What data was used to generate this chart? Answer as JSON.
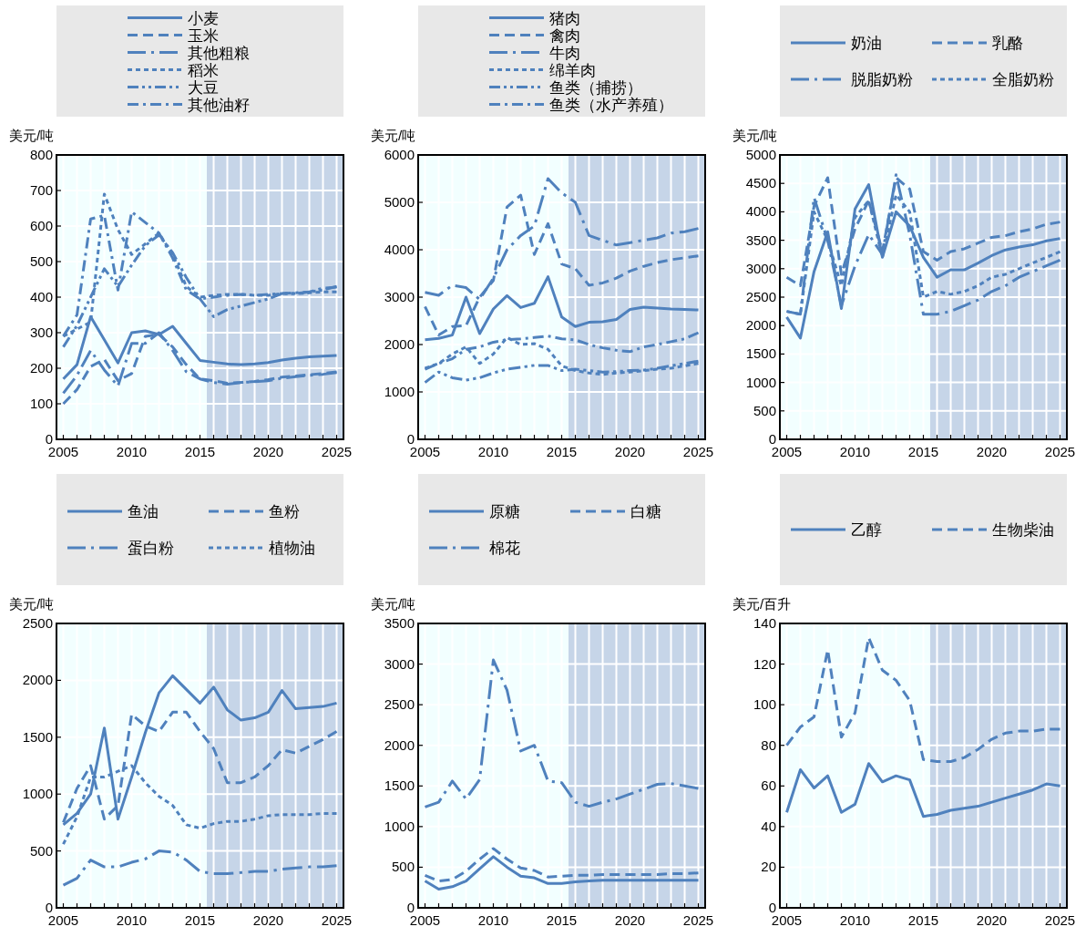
{
  "chart_data": [
    {
      "type": "line",
      "ylabel": "美元/吨",
      "legend": "top",
      "grid": true,
      "xlim": [
        2004.5,
        2025.5
      ],
      "ylim": [
        0,
        800
      ],
      "yticks": [
        0,
        100,
        200,
        300,
        400,
        500,
        600,
        700,
        800
      ],
      "xticks": [
        2005,
        {
          "value": 2006,
          "label": null
        },
        {
          "value": 2007,
          "label": null
        },
        {
          "value": 2008,
          "label": null
        },
        {
          "value": 2009,
          "label": null
        },
        2010,
        {
          "value": 2011,
          "label": null
        },
        {
          "value": 2012,
          "label": null
        },
        {
          "value": 2013,
          "label": null
        },
        {
          "value": 2014,
          "label": null
        },
        2015,
        {
          "value": 2016,
          "label": null
        },
        {
          "value": 2017,
          "label": null
        },
        {
          "value": 2018,
          "label": null
        },
        {
          "value": 2019,
          "label": null
        },
        2020,
        {
          "value": 2021,
          "label": null
        },
        {
          "value": 2022,
          "label": null
        },
        {
          "value": 2023,
          "label": null
        },
        {
          "value": 2024,
          "label": null
        },
        2025
      ],
      "x": [
        2005,
        2006,
        2007,
        2008,
        2009,
        2010,
        2011,
        2012,
        2013,
        2014,
        2015,
        2016,
        2017,
        2018,
        2019,
        2020,
        2021,
        2022,
        2023,
        2024,
        2025
      ],
      "bands": [
        {
          "axis": "x",
          "from": 2015.5,
          "to": 2025.5,
          "color": "#c6d5e8"
        }
      ],
      "series": [
        {
          "name": "小麦",
          "color": "#4f81bd",
          "line_style": "solid",
          "values": [
            170,
            210,
            345,
            280,
            215,
            300,
            305,
            295,
            318,
            270,
            222,
            217,
            212,
            210,
            212,
            216,
            223,
            228,
            232,
            234,
            236
          ]
        },
        {
          "name": "玉米",
          "color": "#4f81bd",
          "line_style": "dashed",
          "values": [
            100,
            140,
            205,
            225,
            165,
            185,
            290,
            295,
            260,
            210,
            170,
            165,
            158,
            160,
            163,
            168,
            175,
            178,
            182,
            185,
            190
          ]
        },
        {
          "name": "其他粗粮",
          "color": "#4f81bd",
          "line_style": "longdashdot",
          "values": [
            130,
            180,
            250,
            195,
            150,
            270,
            270,
            300,
            250,
            190,
            170,
            160,
            155,
            160,
            162,
            165,
            172,
            176,
            180,
            183,
            188
          ]
        },
        {
          "name": "稻米",
          "color": "#4f81bd",
          "line_style": "dotted",
          "values": [
            290,
            310,
            330,
            690,
            590,
            520,
            550,
            580,
            520,
            430,
            400,
            405,
            408,
            408,
            405,
            405,
            410,
            410,
            412,
            415,
            415
          ]
        },
        {
          "name": "大豆",
          "color": "#4f81bd",
          "line_style": "dashdotdot",
          "values": [
            260,
            320,
            400,
            480,
            430,
            490,
            545,
            575,
            525,
            455,
            395,
            345,
            365,
            375,
            385,
            395,
            410,
            410,
            415,
            420,
            430
          ]
        },
        {
          "name": "其他油籽",
          "color": "#4f81bd",
          "line_style": "dashdot",
          "values": [
            290,
            350,
            620,
            630,
            420,
            640,
            610,
            580,
            510,
            420,
            395,
            400,
            405,
            408,
            405,
            408,
            410,
            412,
            415,
            425,
            428
          ]
        }
      ]
    },
    {
      "type": "line",
      "ylabel": "美元/吨",
      "legend": "top",
      "grid": true,
      "xlim": [
        2004.5,
        2025.5
      ],
      "ylim": [
        0,
        6000
      ],
      "yticks": [
        0,
        1000,
        2000,
        3000,
        4000,
        5000,
        6000
      ],
      "xticks": [
        2005,
        {
          "value": 2006,
          "label": null
        },
        {
          "value": 2007,
          "label": null
        },
        {
          "value": 2008,
          "label": null
        },
        {
          "value": 2009,
          "label": null
        },
        2010,
        {
          "value": 2011,
          "label": null
        },
        {
          "value": 2012,
          "label": null
        },
        {
          "value": 2013,
          "label": null
        },
        {
          "value": 2014,
          "label": null
        },
        2015,
        {
          "value": 2016,
          "label": null
        },
        {
          "value": 2017,
          "label": null
        },
        {
          "value": 2018,
          "label": null
        },
        {
          "value": 2019,
          "label": null
        },
        2020,
        {
          "value": 2021,
          "label": null
        },
        {
          "value": 2022,
          "label": null
        },
        {
          "value": 2023,
          "label": null
        },
        {
          "value": 2024,
          "label": null
        },
        2025
      ],
      "x": [
        2005,
        2006,
        2007,
        2008,
        2009,
        2010,
        2011,
        2012,
        2013,
        2014,
        2015,
        2016,
        2017,
        2018,
        2019,
        2020,
        2021,
        2022,
        2023,
        2024,
        2025
      ],
      "bands": [
        {
          "axis": "x",
          "from": 2015.5,
          "to": 2025.5,
          "color": "#c6d5e8"
        }
      ],
      "series": [
        {
          "name": "猪肉",
          "color": "#4f81bd",
          "line_style": "solid",
          "values": [
            2100,
            2130,
            2200,
            3000,
            2230,
            2750,
            3030,
            2780,
            2870,
            3430,
            2580,
            2380,
            2470,
            2480,
            2530,
            2740,
            2790,
            2770,
            2750,
            2740,
            2730
          ]
        },
        {
          "name": "禽肉",
          "color": "#4f81bd",
          "line_style": "dashed",
          "values": [
            2800,
            2200,
            2380,
            2400,
            3000,
            3350,
            4900,
            5150,
            3900,
            4550,
            3700,
            3600,
            3250,
            3300,
            3400,
            3550,
            3650,
            3730,
            3790,
            3830,
            3870
          ]
        },
        {
          "name": "牛肉",
          "color": "#4f81bd",
          "line_style": "longdashdot",
          "values": [
            3100,
            3040,
            3250,
            3200,
            2950,
            3400,
            4000,
            4300,
            4500,
            5500,
            5200,
            5000,
            4300,
            4200,
            4100,
            4150,
            4200,
            4250,
            4350,
            4380,
            4450
          ]
        },
        {
          "name": "绵羊肉",
          "color": "#4f81bd",
          "line_style": "dotted",
          "values": [
            1500,
            1600,
            1800,
            1950,
            1600,
            1800,
            2150,
            2000,
            2020,
            1900,
            1550,
            1450,
            1400,
            1370,
            1400,
            1420,
            1450,
            1480,
            1500,
            1550,
            1600
          ]
        },
        {
          "name": "鱼类（捕捞）",
          "color": "#4f81bd",
          "line_style": "dashdotdot",
          "values": [
            1200,
            1420,
            1300,
            1250,
            1300,
            1400,
            1480,
            1520,
            1560,
            1560,
            1450,
            1480,
            1450,
            1420,
            1430,
            1450,
            1460,
            1500,
            1550,
            1600,
            1650
          ]
        },
        {
          "name": "鱼类（水产养殖）",
          "color": "#4f81bd",
          "line_style": "dashdot",
          "values": [
            1480,
            1600,
            1700,
            1900,
            1950,
            2050,
            2100,
            2120,
            2150,
            2180,
            2120,
            2100,
            2000,
            1930,
            1880,
            1850,
            1950,
            2000,
            2060,
            2120,
            2250
          ]
        }
      ]
    },
    {
      "type": "line",
      "ylabel": "美元/吨",
      "legend": "top",
      "grid": true,
      "xlim": [
        2004.5,
        2025.5
      ],
      "ylim": [
        0,
        5000
      ],
      "yticks": [
        0,
        500,
        1000,
        1500,
        2000,
        2500,
        3000,
        3500,
        4000,
        4500,
        5000
      ],
      "xticks": [
        2005,
        {
          "value": 2006,
          "label": null
        },
        {
          "value": 2007,
          "label": null
        },
        {
          "value": 2008,
          "label": null
        },
        {
          "value": 2009,
          "label": null
        },
        2010,
        {
          "value": 2011,
          "label": null
        },
        {
          "value": 2012,
          "label": null
        },
        {
          "value": 2013,
          "label": null
        },
        {
          "value": 2014,
          "label": null
        },
        2015,
        {
          "value": 2016,
          "label": null
        },
        {
          "value": 2017,
          "label": null
        },
        {
          "value": 2018,
          "label": null
        },
        {
          "value": 2019,
          "label": null
        },
        2020,
        {
          "value": 2021,
          "label": null
        },
        {
          "value": 2022,
          "label": null
        },
        {
          "value": 2023,
          "label": null
        },
        {
          "value": 2024,
          "label": null
        },
        2025
      ],
      "x": [
        2005,
        2006,
        2007,
        2008,
        2009,
        2010,
        2011,
        2012,
        2013,
        2014,
        2015,
        2016,
        2017,
        2018,
        2019,
        2020,
        2021,
        2022,
        2023,
        2024,
        2025
      ],
      "bands": [
        {
          "axis": "x",
          "from": 2015.5,
          "to": 2025.5,
          "color": "#c6d5e8"
        }
      ],
      "series": [
        {
          "name": "奶油",
          "color": "#4f81bd",
          "line_style": "solid",
          "values": [
            2150,
            1780,
            2950,
            3650,
            2300,
            4050,
            4480,
            3200,
            4000,
            3750,
            3200,
            2850,
            2980,
            2980,
            3100,
            3230,
            3330,
            3380,
            3420,
            3490,
            3530
          ]
        },
        {
          "name": "乳酪",
          "color": "#4f81bd",
          "line_style": "dashed",
          "values": [
            2850,
            2700,
            4100,
            4600,
            2900,
            3700,
            4200,
            3300,
            4600,
            4400,
            3300,
            3150,
            3300,
            3350,
            3450,
            3550,
            3580,
            3650,
            3700,
            3780,
            3820
          ]
        },
        {
          "name": "脱脂奶粉",
          "color": "#4f81bd",
          "line_style": "longdashdot",
          "values": [
            2250,
            2200,
            4250,
            3500,
            2350,
            3050,
            3600,
            3250,
            4650,
            3600,
            2200,
            2200,
            2250,
            2350,
            2450,
            2600,
            2700,
            2850,
            2950,
            3050,
            3150
          ]
        },
        {
          "name": "全脂奶粉",
          "color": "#4f81bd",
          "line_style": "dotted",
          "values": [
            2250,
            2200,
            4000,
            3500,
            2700,
            3900,
            4200,
            3200,
            4300,
            4000,
            2500,
            2600,
            2550,
            2600,
            2700,
            2850,
            2900,
            3000,
            3100,
            3200,
            3300
          ]
        }
      ]
    },
    {
      "type": "line",
      "ylabel": "美元/吨",
      "legend": "top",
      "grid": true,
      "xlim": [
        2004.5,
        2025.5
      ],
      "ylim": [
        0,
        2500
      ],
      "yticks": [
        0,
        500,
        1000,
        1500,
        2000,
        2500
      ],
      "xticks": [
        2005,
        {
          "value": 2006,
          "label": null
        },
        {
          "value": 2007,
          "label": null
        },
        {
          "value": 2008,
          "label": null
        },
        {
          "value": 2009,
          "label": null
        },
        2010,
        {
          "value": 2011,
          "label": null
        },
        {
          "value": 2012,
          "label": null
        },
        {
          "value": 2013,
          "label": null
        },
        {
          "value": 2014,
          "label": null
        },
        2015,
        {
          "value": 2016,
          "label": null
        },
        {
          "value": 2017,
          "label": null
        },
        {
          "value": 2018,
          "label": null
        },
        {
          "value": 2019,
          "label": null
        },
        2020,
        {
          "value": 2021,
          "label": null
        },
        {
          "value": 2022,
          "label": null
        },
        {
          "value": 2023,
          "label": null
        },
        {
          "value": 2024,
          "label": null
        },
        2025
      ],
      "x": [
        2005,
        2006,
        2007,
        2008,
        2009,
        2010,
        2011,
        2012,
        2013,
        2014,
        2015,
        2016,
        2017,
        2018,
        2019,
        2020,
        2021,
        2022,
        2023,
        2024,
        2025
      ],
      "bands": [
        {
          "axis": "x",
          "from": 2015.5,
          "to": 2025.5,
          "color": "#c6d5e8"
        }
      ],
      "series": [
        {
          "name": "鱼油",
          "color": "#4f81bd",
          "line_style": "solid",
          "values": [
            730,
            830,
            1000,
            1580,
            780,
            1150,
            1540,
            1890,
            2040,
            1920,
            1800,
            1940,
            1740,
            1650,
            1670,
            1720,
            1910,
            1750,
            1760,
            1770,
            1800
          ]
        },
        {
          "name": "鱼粉",
          "color": "#4f81bd",
          "line_style": "dashed",
          "values": [
            750,
            1050,
            1250,
            780,
            900,
            1700,
            1600,
            1550,
            1720,
            1720,
            1550,
            1400,
            1100,
            1100,
            1150,
            1250,
            1390,
            1360,
            1420,
            1480,
            1550
          ]
        },
        {
          "name": "蛋白粉",
          "color": "#4f81bd",
          "line_style": "longdashdot",
          "values": [
            200,
            260,
            420,
            360,
            360,
            400,
            430,
            500,
            490,
            420,
            320,
            300,
            300,
            310,
            320,
            320,
            340,
            350,
            360,
            360,
            370
          ]
        },
        {
          "name": "植物油",
          "color": "#4f81bd",
          "line_style": "dotted",
          "values": [
            560,
            800,
            1150,
            1150,
            1200,
            1250,
            1100,
            980,
            900,
            730,
            700,
            740,
            760,
            760,
            780,
            810,
            820,
            820,
            820,
            830,
            830
          ]
        }
      ]
    },
    {
      "type": "line",
      "ylabel": "美元/吨",
      "legend": "top",
      "grid": true,
      "xlim": [
        2004.5,
        2025.5
      ],
      "ylim": [
        0,
        3500
      ],
      "yticks": [
        0,
        500,
        1000,
        1500,
        2000,
        2500,
        3000,
        3500
      ],
      "xticks": [
        2005,
        {
          "value": 2006,
          "label": null
        },
        {
          "value": 2007,
          "label": null
        },
        {
          "value": 2008,
          "label": null
        },
        {
          "value": 2009,
          "label": null
        },
        2010,
        {
          "value": 2011,
          "label": null
        },
        {
          "value": 2012,
          "label": null
        },
        {
          "value": 2013,
          "label": null
        },
        {
          "value": 2014,
          "label": null
        },
        2015,
        {
          "value": 2016,
          "label": null
        },
        {
          "value": 2017,
          "label": null
        },
        {
          "value": 2018,
          "label": null
        },
        {
          "value": 2019,
          "label": null
        },
        2020,
        {
          "value": 2021,
          "label": null
        },
        {
          "value": 2022,
          "label": null
        },
        {
          "value": 2023,
          "label": null
        },
        {
          "value": 2024,
          "label": null
        },
        2025
      ],
      "x": [
        2005,
        2006,
        2007,
        2008,
        2009,
        2010,
        2011,
        2012,
        2013,
        2014,
        2015,
        2016,
        2017,
        2018,
        2019,
        2020,
        2021,
        2022,
        2023,
        2024,
        2025
      ],
      "bands": [
        {
          "axis": "x",
          "from": 2015.5,
          "to": 2025.5,
          "color": "#c6d5e8"
        }
      ],
      "series": [
        {
          "name": "原糖",
          "color": "#4f81bd",
          "line_style": "solid",
          "values": [
            330,
            230,
            260,
            330,
            480,
            630,
            500,
            390,
            370,
            300,
            300,
            320,
            330,
            340,
            340,
            340,
            340,
            340,
            340,
            340,
            340
          ]
        },
        {
          "name": "白糖",
          "color": "#4f81bd",
          "line_style": "dashed",
          "values": [
            400,
            330,
            350,
            450,
            600,
            730,
            600,
            490,
            460,
            380,
            390,
            400,
            400,
            410,
            410,
            410,
            410,
            410,
            420,
            420,
            430
          ]
        },
        {
          "name": "棉花",
          "color": "#4f81bd",
          "line_style": "longdashdot",
          "values": [
            1240,
            1300,
            1560,
            1340,
            1580,
            3050,
            2680,
            1930,
            2000,
            1560,
            1540,
            1300,
            1250,
            1300,
            1340,
            1400,
            1460,
            1520,
            1530,
            1500,
            1470
          ]
        }
      ]
    },
    {
      "type": "line",
      "ylabel": "美元/百升",
      "legend": "top",
      "grid": true,
      "xlim": [
        2004.5,
        2025.5
      ],
      "ylim": [
        0,
        140
      ],
      "yticks": [
        0,
        20,
        40,
        60,
        80,
        100,
        120,
        140
      ],
      "xticks": [
        2005,
        {
          "value": 2006,
          "label": null
        },
        {
          "value": 2007,
          "label": null
        },
        {
          "value": 2008,
          "label": null
        },
        {
          "value": 2009,
          "label": null
        },
        2010,
        {
          "value": 2011,
          "label": null
        },
        {
          "value": 2012,
          "label": null
        },
        {
          "value": 2013,
          "label": null
        },
        {
          "value": 2014,
          "label": null
        },
        2015,
        {
          "value": 2016,
          "label": null
        },
        {
          "value": 2017,
          "label": null
        },
        {
          "value": 2018,
          "label": null
        },
        {
          "value": 2019,
          "label": null
        },
        2020,
        {
          "value": 2021,
          "label": null
        },
        {
          "value": 2022,
          "label": null
        },
        {
          "value": 2023,
          "label": null
        },
        {
          "value": 2024,
          "label": null
        },
        2025
      ],
      "x": [
        2005,
        2006,
        2007,
        2008,
        2009,
        2010,
        2011,
        2012,
        2013,
        2014,
        2015,
        2016,
        2017,
        2018,
        2019,
        2020,
        2021,
        2022,
        2023,
        2024,
        2025
      ],
      "bands": [
        {
          "axis": "x",
          "from": 2015.5,
          "to": 2025.5,
          "color": "#c6d5e8"
        }
      ],
      "series": [
        {
          "name": "乙醇",
          "color": "#4f81bd",
          "line_style": "solid",
          "values": [
            47,
            68,
            59,
            65,
            47,
            51,
            71,
            62,
            65,
            63,
            45,
            46,
            48,
            49,
            50,
            52,
            54,
            56,
            58,
            61,
            60
          ]
        },
        {
          "name": "生物柴油",
          "color": "#4f81bd",
          "line_style": "dashed",
          "values": [
            80,
            89,
            94,
            127,
            84,
            96,
            133,
            117,
            112,
            102,
            73,
            72,
            72,
            74,
            78,
            83,
            86,
            87,
            87,
            88,
            88
          ]
        }
      ]
    }
  ]
}
